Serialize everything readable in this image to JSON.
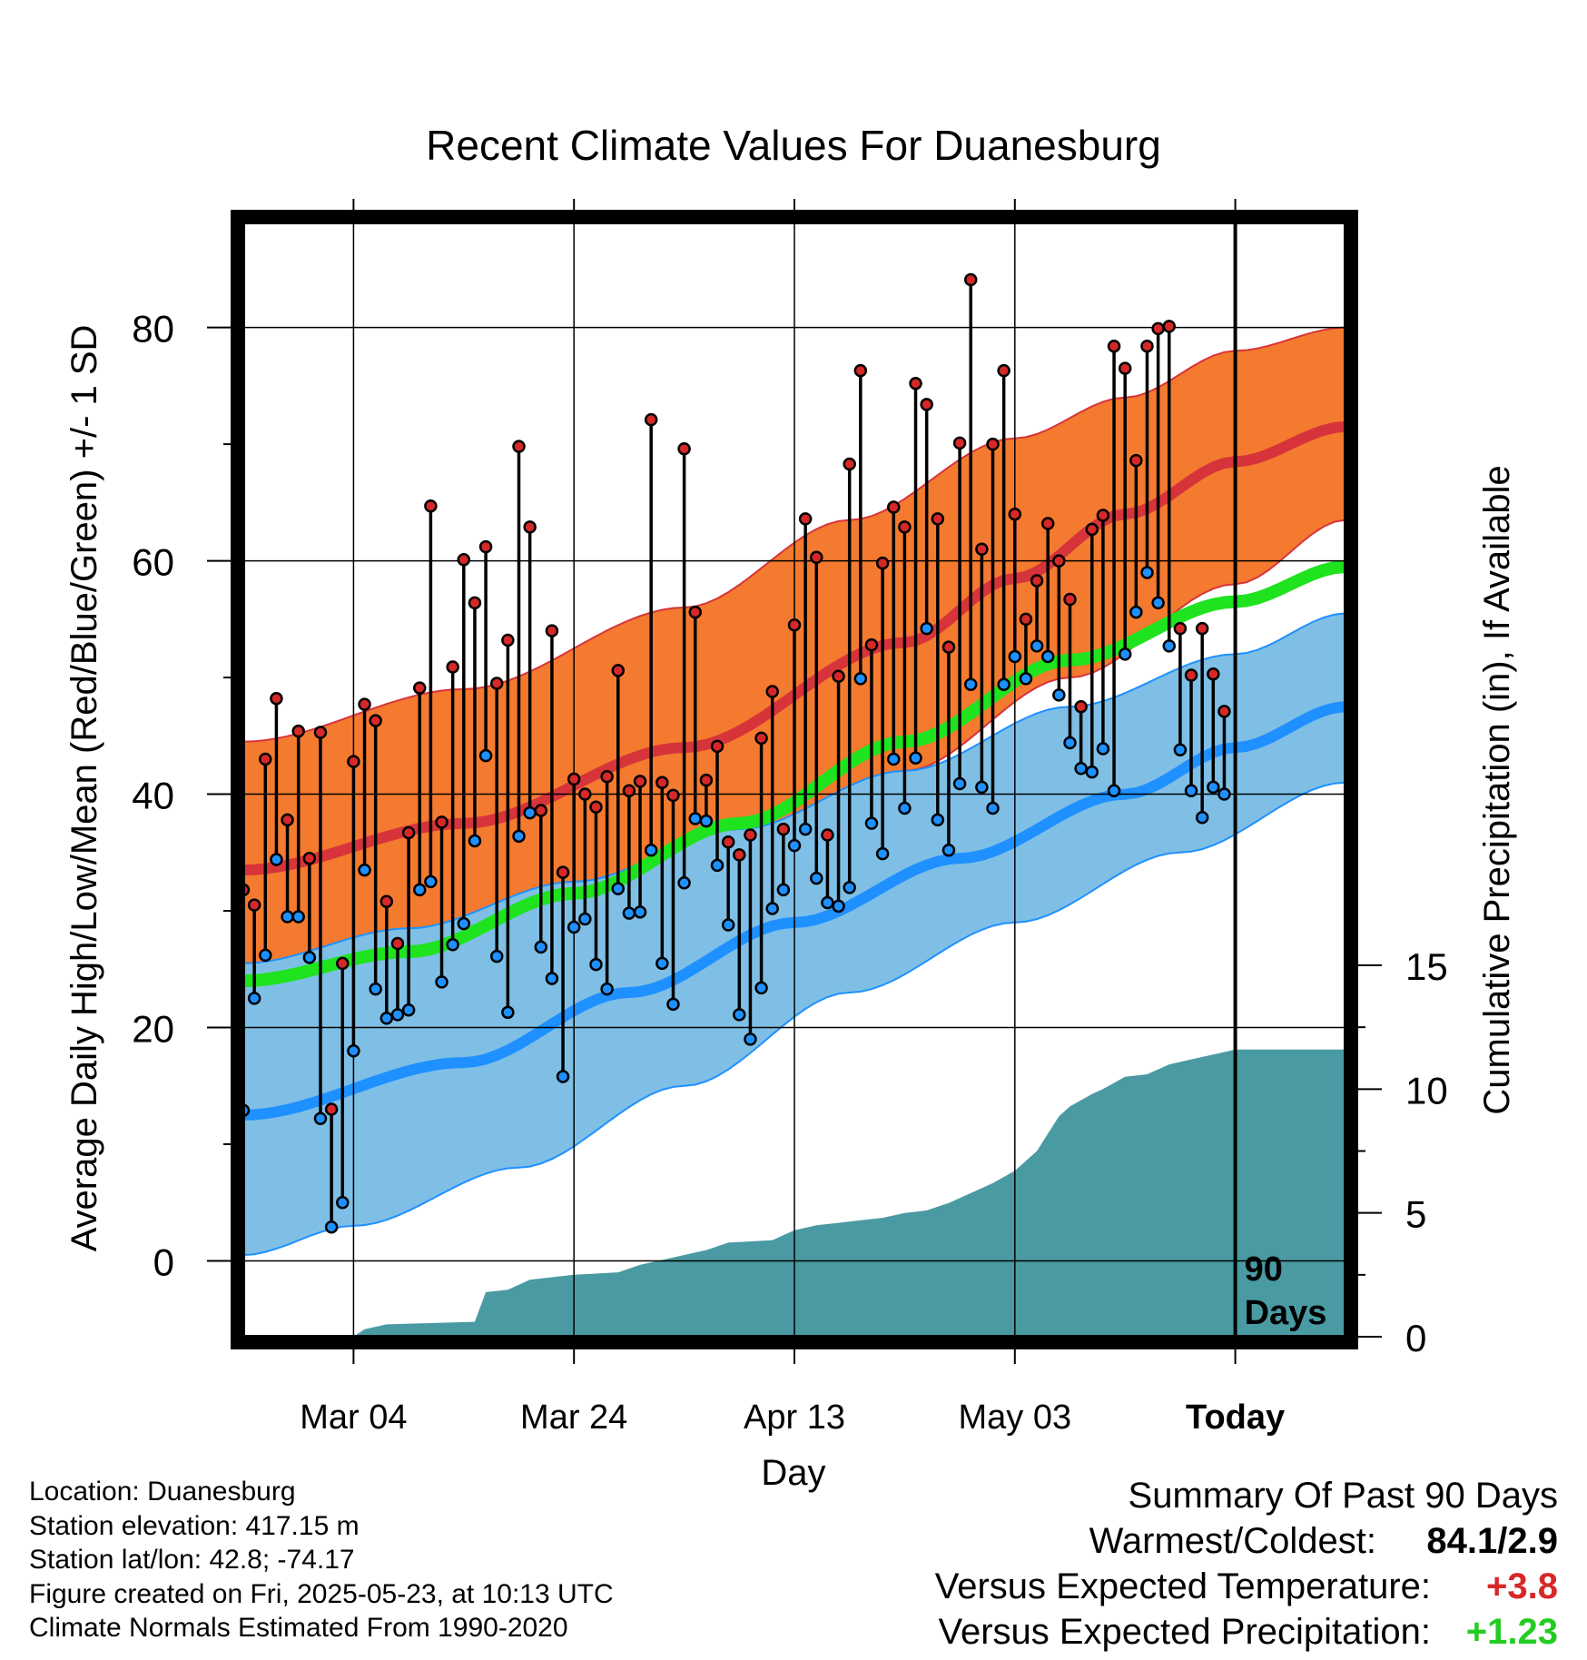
{
  "chart_data": {
    "type": "line",
    "title": "Recent Climate Values For Duanesburg",
    "xlabel": "Day",
    "ylabel": "Average Daily High/Low/Mean (Red/Blue/Green) +/- 1 SD",
    "y2label": "Cumulative Precipitation (in), If Available",
    "x_ticks": [
      "Mar 04",
      "Mar 24",
      "Apr 13",
      "May 03",
      "Today"
    ],
    "y_ticks": [
      "0",
      "20",
      "40",
      "60",
      "80"
    ],
    "y2_ticks": [
      "0",
      "5",
      "10",
      "15"
    ],
    "ylim": [
      -6.5,
      89
    ],
    "y2lim": [
      0,
      45
    ],
    "xlim": [
      0,
      100
    ],
    "today_index": 90,
    "today_label": "90 Days",
    "normals": {
      "high_mean": [
        [
          0,
          33.5
        ],
        [
          20,
          37.5
        ],
        [
          40,
          44
        ],
        [
          60,
          53
        ],
        [
          70,
          58.5
        ],
        [
          80,
          64
        ],
        [
          90,
          68.5
        ],
        [
          100,
          71.5
        ]
      ],
      "high_upper": [
        [
          0,
          44.5
        ],
        [
          20,
          49
        ],
        [
          40,
          56
        ],
        [
          55,
          63.5
        ],
        [
          70,
          70.5
        ],
        [
          80,
          74
        ],
        [
          90,
          78
        ],
        [
          100,
          80
        ]
      ],
      "high_lower": [
        [
          0,
          25
        ],
        [
          15,
          27.5
        ],
        [
          30,
          31.5
        ],
        [
          45,
          35.5
        ],
        [
          60,
          42
        ],
        [
          75,
          50
        ],
        [
          90,
          58
        ],
        [
          100,
          63.5
        ]
      ],
      "mean": [
        [
          0,
          24
        ],
        [
          15,
          26.5
        ],
        [
          30,
          31.5
        ],
        [
          45,
          37.5
        ],
        [
          60,
          44.5
        ],
        [
          75,
          51.5
        ],
        [
          90,
          56.5
        ],
        [
          100,
          59.5
        ]
      ],
      "low_mean": [
        [
          0,
          12.5
        ],
        [
          20,
          17
        ],
        [
          35,
          23
        ],
        [
          50,
          29
        ],
        [
          65,
          34.5
        ],
        [
          80,
          40
        ],
        [
          90,
          44
        ],
        [
          100,
          47.5
        ]
      ],
      "low_upper": [
        [
          0,
          25.5
        ],
        [
          15,
          28.5
        ],
        [
          30,
          32.5
        ],
        [
          45,
          37
        ],
        [
          60,
          42
        ],
        [
          75,
          47.5
        ],
        [
          90,
          52
        ],
        [
          100,
          55.5
        ]
      ],
      "low_lower": [
        [
          0,
          0.5
        ],
        [
          10,
          3
        ],
        [
          25,
          8
        ],
        [
          40,
          15
        ],
        [
          55,
          23
        ],
        [
          70,
          29
        ],
        [
          85,
          35
        ],
        [
          100,
          41
        ]
      ]
    },
    "daily_high": [
      31.8,
      30.5,
      43,
      48.2,
      37.8,
      45.4,
      34.5,
      45.3,
      13,
      25.5,
      42.8,
      47.7,
      46.3,
      30.8,
      27.2,
      36.7,
      49.1,
      64.7,
      37.6,
      50.9,
      60.1,
      56.4,
      61.2,
      49.5,
      53.2,
      69.8,
      62.9,
      38.6,
      54,
      33.3,
      41.3,
      40,
      38.9,
      41.5,
      50.6,
      40.3,
      41.1,
      72.1,
      41,
      39.9,
      69.6,
      55.6,
      41.2,
      44.1,
      35.9,
      34.8,
      36.5,
      44.8,
      48.8,
      37,
      54.5,
      63.6,
      60.3,
      36.5,
      50.1,
      68.3,
      76.3,
      52.8,
      59.8,
      64.6,
      62.9,
      75.2,
      73.4,
      63.6,
      52.6,
      70.1,
      84.1,
      61,
      70,
      76.3,
      64,
      55,
      58.3,
      63.2,
      60,
      56.7,
      47.5,
      62.7,
      63.9,
      78.4,
      76.5,
      68.6,
      78.4,
      79.9,
      80.1,
      54.2,
      50.2,
      54.2,
      50.3,
      47.1
    ],
    "daily_low": [
      12.9,
      22.5,
      26.2,
      34.4,
      29.5,
      29.5,
      26,
      12.2,
      2.9,
      5,
      18,
      33.5,
      23.3,
      20.8,
      21.1,
      21.5,
      31.8,
      32.5,
      23.9,
      27.1,
      28.9,
      36,
      43.3,
      26.1,
      21.3,
      36.4,
      38.4,
      26.9,
      24.2,
      15.8,
      28.6,
      29.3,
      25.4,
      23.3,
      31.9,
      29.8,
      29.9,
      35.2,
      25.5,
      22,
      32.4,
      37.9,
      37.7,
      33.9,
      28.8,
      21.1,
      19,
      23.4,
      30.2,
      31.8,
      35.6,
      37,
      32.8,
      30.7,
      30.4,
      32,
      49.9,
      37.5,
      34.9,
      43,
      38.8,
      43.1,
      54.2,
      37.8,
      35.2,
      40.9,
      49.4,
      40.6,
      38.8,
      49.4,
      51.8,
      49.9,
      52.7,
      51.8,
      48.5,
      44.4,
      42.2,
      41.9,
      43.9,
      40.3,
      52,
      55.6,
      59,
      56.4,
      52.7,
      43.8,
      40.3,
      38,
      40.6,
      40
    ],
    "precip_cumulative": [
      [
        0,
        0
      ],
      [
        10,
        0
      ],
      [
        11,
        0.3
      ],
      [
        13,
        0.5
      ],
      [
        21,
        0.6
      ],
      [
        22,
        1.8
      ],
      [
        24,
        1.9
      ],
      [
        26,
        2.3
      ],
      [
        30,
        2.5
      ],
      [
        34,
        2.6
      ],
      [
        36,
        2.9
      ],
      [
        38,
        3.1
      ],
      [
        40,
        3.3
      ],
      [
        42,
        3.5
      ],
      [
        44,
        3.8
      ],
      [
        48,
        3.9
      ],
      [
        50,
        4.3
      ],
      [
        52,
        4.5
      ],
      [
        54,
        4.6
      ],
      [
        56,
        4.7
      ],
      [
        58,
        4.8
      ],
      [
        60,
        5
      ],
      [
        62,
        5.1
      ],
      [
        64,
        5.4
      ],
      [
        66,
        5.8
      ],
      [
        68,
        6.2
      ],
      [
        70,
        6.7
      ],
      [
        72,
        7.5
      ],
      [
        73,
        8.2
      ],
      [
        74,
        8.9
      ],
      [
        75,
        9.3
      ],
      [
        77,
        9.8
      ],
      [
        78,
        10
      ],
      [
        80,
        10.5
      ],
      [
        82,
        10.6
      ],
      [
        84,
        11
      ],
      [
        86,
        11.2
      ],
      [
        88,
        11.4
      ],
      [
        90,
        11.6
      ],
      [
        100,
        11.6
      ]
    ],
    "colors": {
      "high_band": "#f47a2f",
      "high_line": "#d6343a",
      "low_band": "#7fbfe6",
      "low_line": "#1e90ff",
      "mean_line": "#1ee31e",
      "precip": "#4a9aa3",
      "high_dot": "#d62828",
      "low_dot": "#1e90ff"
    }
  },
  "station": {
    "location": "Location: Duanesburg",
    "elevation": "Station elevation: 417.15 m",
    "latlon": "Station lat/lon: 42.8; -74.17",
    "created": "Figure created on Fri, 2025-05-23, at 10:13 UTC",
    "normals": "Climate Normals Estimated From 1990-2020"
  },
  "summary": {
    "heading": "Summary Of Past 90 Days",
    "warmest_label": "Warmest/Coldest:",
    "warmest_value": "84.1/2.9",
    "temp_label": "Versus Expected Temperature:",
    "temp_value": "+3.8",
    "temp_color": "#d62828",
    "precip_label": "Versus Expected Precipitation:",
    "precip_value": "+1.23",
    "precip_color": "#22cc22"
  }
}
